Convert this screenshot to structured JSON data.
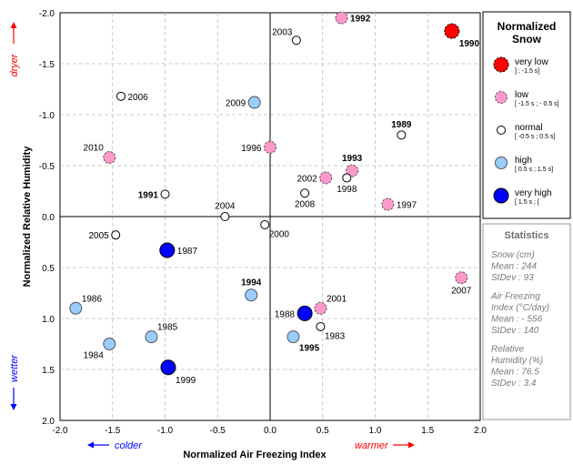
{
  "chart_data": {
    "type": "scatter",
    "xlabel": "Normalized Air Freezing Index",
    "ylabel": "Normalized Relative Humidity",
    "xlim": [
      -2.0,
      2.0
    ],
    "ylim": [
      -2.0,
      2.0
    ],
    "y_inverted": true,
    "grid": true,
    "x_ticks": [
      "-2.0",
      "-1.5",
      "-1.0",
      "-0.5",
      "0.0",
      "0.5",
      "1.0",
      "1.5",
      "2.0"
    ],
    "y_ticks": [
      "-2.0",
      "-1.5",
      "-1.0",
      "-0.5",
      "0.0",
      "0.5",
      "1.0",
      "1.5",
      "2.0"
    ],
    "direction_labels": {
      "top": "dryer",
      "bottom": "wetter",
      "left": "colder",
      "right": "warmer"
    },
    "colors": {
      "very_low": "#ff0000",
      "low": "#ff99cc",
      "normal": "#ffffff",
      "high": "#99ccff",
      "very_high": "#0000ff",
      "dryer_warmer": "#ff0000",
      "wetter_colder": "#0000ff"
    },
    "legend": {
      "title_line1": "Normalized",
      "title_line2": "Snow",
      "placement": "right",
      "entries": [
        {
          "class": "very_low",
          "label": "very low",
          "range": "] ; -1.5 s]"
        },
        {
          "class": "low",
          "label": "low",
          "range": "[ -1.5 s ; - 0.5 s]"
        },
        {
          "class": "normal",
          "label": "normal",
          "range": "[ -0.5 s ; 0.5 s]"
        },
        {
          "class": "high",
          "label": "high",
          "range": "[ 0.5 s ; 1.5 s]"
        },
        {
          "class": "very_high",
          "label": "very high",
          "range": "[ 1.5 s ; ["
        }
      ]
    },
    "statistics": {
      "title": "Statistics",
      "lines": [
        "Snow (cm)",
        "Mean : 244",
        "StDev : 93",
        "",
        "Air Freezing",
        "Index (°C/day)",
        "Mean : - 556",
        "StDev : 140",
        "",
        "Relative",
        "Humidity (%)",
        "Mean : 76.5",
        "StDev : 3.4"
      ]
    },
    "points": [
      {
        "label": "1983",
        "x": 0.48,
        "y": 1.08,
        "class": "normal",
        "bold": false,
        "lpos": "below-right"
      },
      {
        "label": "1984",
        "x": -1.53,
        "y": 1.25,
        "class": "high",
        "bold": false,
        "lpos": "below-left"
      },
      {
        "label": "1985",
        "x": -1.13,
        "y": 1.18,
        "class": "high",
        "bold": false,
        "lpos": "above-right"
      },
      {
        "label": "1986",
        "x": -1.85,
        "y": 0.9,
        "class": "high",
        "bold": false,
        "lpos": "above-right"
      },
      {
        "label": "1987",
        "x": -0.98,
        "y": 0.33,
        "class": "very_high",
        "bold": false,
        "lpos": "right"
      },
      {
        "label": "1988",
        "x": 0.33,
        "y": 0.95,
        "class": "very_high",
        "bold": false,
        "lpos": "left"
      },
      {
        "label": "1989",
        "x": 1.25,
        "y": -0.8,
        "class": "normal",
        "bold": true,
        "lpos": "above"
      },
      {
        "label": "1990",
        "x": 1.73,
        "y": -1.82,
        "class": "very_low",
        "bold": true,
        "lpos": "below-right"
      },
      {
        "label": "1991",
        "x": -1.0,
        "y": -0.22,
        "class": "normal",
        "bold": true,
        "lpos": "left"
      },
      {
        "label": "1992",
        "x": 0.68,
        "y": -1.95,
        "class": "low",
        "bold": true,
        "lpos": "right"
      },
      {
        "label": "1993",
        "x": 0.78,
        "y": -0.45,
        "class": "low",
        "bold": true,
        "lpos": "above"
      },
      {
        "label": "1994",
        "x": -0.18,
        "y": 0.77,
        "class": "high",
        "bold": true,
        "lpos": "above"
      },
      {
        "label": "1995",
        "x": 0.22,
        "y": 1.18,
        "class": "high",
        "bold": true,
        "lpos": "below-right"
      },
      {
        "label": "1996",
        "x": 0.0,
        "y": -0.68,
        "class": "low",
        "bold": false,
        "lpos": "left"
      },
      {
        "label": "1997",
        "x": 1.12,
        "y": -0.12,
        "class": "low",
        "bold": false,
        "lpos": "right"
      },
      {
        "label": "1998",
        "x": 0.73,
        "y": -0.38,
        "class": "normal",
        "bold": false,
        "lpos": "below"
      },
      {
        "label": "1999",
        "x": -0.97,
        "y": 1.48,
        "class": "very_high",
        "bold": false,
        "lpos": "below-right"
      },
      {
        "label": "2000",
        "x": -0.05,
        "y": 0.08,
        "class": "normal",
        "bold": false,
        "lpos": "below-right"
      },
      {
        "label": "2001",
        "x": 0.48,
        "y": 0.9,
        "class": "low",
        "bold": false,
        "lpos": "above-right"
      },
      {
        "label": "2002",
        "x": 0.53,
        "y": -0.38,
        "class": "low",
        "bold": false,
        "lpos": "left"
      },
      {
        "label": "2003",
        "x": 0.25,
        "y": -1.73,
        "class": "normal",
        "bold": false,
        "lpos": "above-left"
      },
      {
        "label": "2004",
        "x": -0.43,
        "y": 0.0,
        "class": "normal",
        "bold": false,
        "lpos": "above"
      },
      {
        "label": "2005",
        "x": -1.47,
        "y": 0.18,
        "class": "normal",
        "bold": false,
        "lpos": "left"
      },
      {
        "label": "2006",
        "x": -1.42,
        "y": -1.18,
        "class": "normal",
        "bold": false,
        "lpos": "right"
      },
      {
        "label": "2007",
        "x": 1.82,
        "y": 0.6,
        "class": "low",
        "bold": false,
        "lpos": "below"
      },
      {
        "label": "2008",
        "x": 0.33,
        "y": -0.23,
        "class": "normal",
        "bold": false,
        "lpos": "below"
      },
      {
        "label": "2009",
        "x": -0.15,
        "y": -1.12,
        "class": "high",
        "bold": false,
        "lpos": "left"
      },
      {
        "label": "2010",
        "x": -1.53,
        "y": -0.58,
        "class": "low",
        "bold": false,
        "lpos": "above-left"
      }
    ]
  }
}
